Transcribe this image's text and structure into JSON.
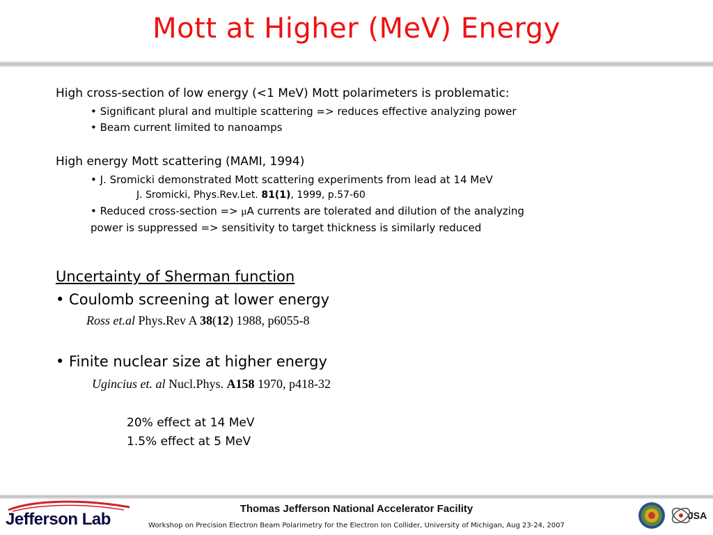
{
  "title": "Mott at Higher (MeV) Energy",
  "section1": {
    "heading": "High cross-section of low energy (<1 MeV) Mott polarimeters is problematic:",
    "bullets": [
      "• Significant plural and multiple scattering => reduces effective analyzing power",
      "• Beam current limited to nanoamps"
    ]
  },
  "section2": {
    "heading": "High energy Mott scattering (MAMI, 1994)",
    "bullet1": "• J. Sromicki demonstrated Mott scattering experiments from lead at 14 MeV",
    "ref": {
      "authors": "J. Sromicki, Phys.Rev.Let. ",
      "volume": "81(1)",
      "rest": ", 1999, p.57-60"
    },
    "bullet2": {
      "prefix": "• Reduced cross-section => ",
      "mu": "μ",
      "line1_rest": "A currents are tolerated and dilution of the analyzing",
      "line2": "power is suppressed => sensitivity to target thickness is similarly reduced"
    }
  },
  "section3": {
    "heading": "Uncertainty of Sherman function",
    "item1": "• Coulomb screening at lower energy",
    "ref1": {
      "authors": "Ross et.al",
      "journal": " Phys.Rev A ",
      "volume": "38",
      "issue_open": "(",
      "issue": "12",
      "issue_close": ")",
      "rest": " 1988, p6055-8"
    },
    "item2": "• Finite nuclear size at higher energy",
    "ref2": {
      "authors": "Ugincius et. al",
      "journal": " Nucl.Phys. ",
      "volume": "A158",
      "rest": " 1970, p418-32"
    },
    "effects": [
      "20% effect at 14 MeV",
      "1.5% effect at 5 MeV"
    ]
  },
  "footer": {
    "logo_text": "Jefferson Lab",
    "facility": "Thomas Jefferson National Accelerator Facility",
    "workshop": "Workshop on Precision Electron Beam Polarimetry for the Electron Ion Collider, University of Michigan, Aug 23-24, 2007",
    "jsa_logo_text": "JSA"
  },
  "colors": {
    "title": "#ee1111",
    "logo_navy": "#0a0a40",
    "logo_red": "#d21f26"
  }
}
